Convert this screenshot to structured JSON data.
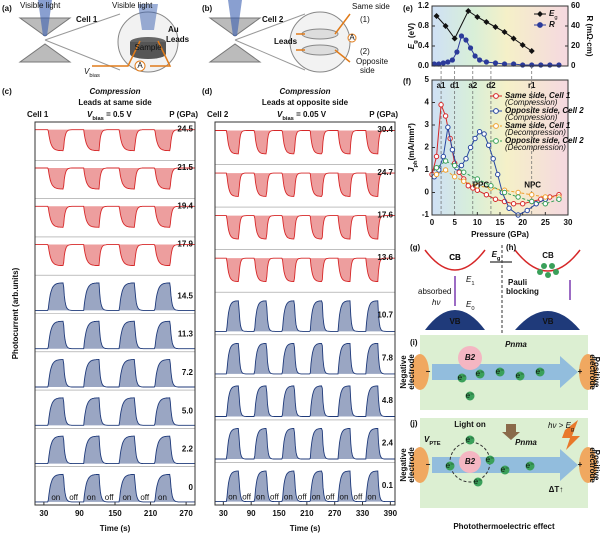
{
  "panel_labels": [
    "(a)",
    "(b)",
    "(c)",
    "(d)",
    "(e)",
    "(f)",
    "(g)",
    "(h)",
    "(i)",
    "(j)"
  ],
  "panel_a": {
    "light_left": "Visible light",
    "light_right": "Visible light",
    "cell": "Cell 1",
    "au": "Au",
    "leads": "Leads",
    "sample": "Sample",
    "bias": {
      "symbol": "V",
      "sub": "bias"
    },
    "ammeter": "A"
  },
  "panel_b": {
    "cell": "Cell 2",
    "leads": "Leads",
    "same": "Same side",
    "same_num": "(1)",
    "opposite_num": "(2)",
    "opposite": "Opposite",
    "opposite2": "side",
    "ammeter": "A"
  },
  "chart_data": [
    {
      "type": "traces",
      "title": "Compression",
      "subtitle": "Leads at same side",
      "cell": "Cell 1",
      "bias": {
        "symbol": "V",
        "sub": "bias",
        "rest": " = 0.5 V"
      },
      "unit_label": "P (GPa)",
      "x_label": "Time (s)",
      "y_label": "Photocurrent (arb.units)",
      "xlim": [
        15,
        285
      ],
      "xticks": [
        30,
        90,
        150,
        210,
        270
      ],
      "switch": [
        "on",
        "off"
      ],
      "traces": [
        {
          "label": "24.5",
          "color": "#d62728",
          "polarity": "negative"
        },
        {
          "label": "21.5",
          "color": "#d62728",
          "polarity": "negative"
        },
        {
          "label": "19.4",
          "color": "#d62728",
          "polarity": "negative"
        },
        {
          "label": "17.9",
          "color": "#d62728",
          "polarity": "negative"
        },
        {
          "label": "14.5",
          "color": "#1f3a7a",
          "polarity": "positive"
        },
        {
          "label": "11.3",
          "color": "#1f3a7a",
          "polarity": "positive"
        },
        {
          "label": "7.2",
          "color": "#1f3a7a",
          "polarity": "positive"
        },
        {
          "label": "5.0",
          "color": "#1f3a7a",
          "polarity": "positive"
        },
        {
          "label": "2.2",
          "color": "#1f3a7a",
          "polarity": "positive"
        },
        {
          "label": "0",
          "color": "#1f3a7a",
          "polarity": "positive"
        }
      ]
    },
    {
      "type": "traces",
      "title": "Compression",
      "subtitle": "Leads at opposite side",
      "cell": "Cell 2",
      "bias": {
        "symbol": "V",
        "sub": "bias",
        "rest": " = 0.05 V"
      },
      "unit_label": "P (GPa)",
      "x_label": "Time (s)",
      "xlim": [
        12,
        400
      ],
      "xticks": [
        30,
        90,
        150,
        210,
        270,
        330,
        390
      ],
      "switch": [
        "on",
        "off"
      ],
      "traces": [
        {
          "label": "30.4",
          "color": "#d62728",
          "polarity": "negative"
        },
        {
          "label": "24.7",
          "color": "#d62728",
          "polarity": "negative"
        },
        {
          "label": "17.6",
          "color": "#d62728",
          "polarity": "negative"
        },
        {
          "label": "13.6",
          "color": "#d62728",
          "polarity": "negative"
        },
        {
          "label": "10.7",
          "color": "#1f3a7a",
          "polarity": "positive"
        },
        {
          "label": "7.8",
          "color": "#1f3a7a",
          "polarity": "positive"
        },
        {
          "label": "4.8",
          "color": "#1f3a7a",
          "polarity": "positive"
        },
        {
          "label": "2.4",
          "color": "#1f3a7a",
          "polarity": "positive"
        },
        {
          "label": "0.1",
          "color": "#1f3a7a",
          "polarity": "positive"
        }
      ]
    },
    {
      "type": "dual-axis-scatter",
      "xlim": [
        0,
        30
      ],
      "ylim": [
        0,
        1.2
      ],
      "yticks": [
        {
          "value": 0,
          "label": "0.0"
        },
        0.4,
        0.8,
        1.2
      ],
      "y2lim": [
        0,
        60
      ],
      "y2ticks": [
        0,
        20,
        40,
        60
      ],
      "y_label": {
        "symbol": "E",
        "sub": "g",
        "rest": " (eV)"
      },
      "y2_label": "R (mΩ·cm)",
      "legend": "upper right",
      "series": [
        {
          "name": "E",
          "name_sub": "g",
          "color": "#111111",
          "marker": "diamond",
          "x": [
            1,
            3,
            5,
            8,
            10,
            12,
            14,
            16,
            18,
            20,
            22
          ],
          "values": [
            1.0,
            0.8,
            0.55,
            1.1,
            0.98,
            0.88,
            0.78,
            0.68,
            0.55,
            0.42,
            0.3
          ]
        },
        {
          "name": "R",
          "color": "#2b3a9a",
          "marker": "circle",
          "axis": "y2",
          "x": [
            0.5,
            1.5,
            2.5,
            3.5,
            4.5,
            5.5,
            6.5,
            7.5,
            8.5,
            9.5,
            10.5,
            12,
            14,
            16,
            18,
            20,
            22,
            24,
            26,
            28
          ],
          "values": [
            2,
            2,
            3,
            4,
            6,
            14,
            30,
            26,
            18,
            10,
            6,
            4,
            3,
            2,
            2,
            1,
            1,
            1,
            1,
            1
          ]
        }
      ]
    },
    {
      "type": "line",
      "xlim": [
        0,
        30
      ],
      "xticks": [
        0,
        5,
        10,
        15,
        20,
        25,
        30
      ],
      "ylim": [
        -1,
        5
      ],
      "yticks": [
        -1,
        0,
        1,
        2,
        3,
        4,
        5
      ],
      "x_label": "Pressure (GPa)",
      "y_label": {
        "symbol": "J",
        "sub": "ph",
        "rest": "(mA/mm²)"
      },
      "legend": "upper right",
      "annotations": [
        {
          "text": "a1",
          "x": 2
        },
        {
          "text": "d1",
          "x": 5
        },
        {
          "text": "a2",
          "x": 9
        },
        {
          "text": "d2",
          "x": 13
        },
        {
          "text": "r1",
          "x": 22
        }
      ],
      "region_labels": [
        "PPC",
        "NPC"
      ],
      "series": [
        {
          "name": "Same side, Cell 1",
          "condition": "(Compression)",
          "color": "#d62728",
          "dash": false,
          "x": [
            0,
            1,
            2,
            3,
            4,
            5,
            6,
            7,
            8,
            9,
            10,
            12,
            14,
            16,
            18,
            20,
            22,
            24,
            26,
            28
          ],
          "values": [
            0.8,
            1.6,
            3.9,
            3.4,
            2.4,
            1.3,
            0.9,
            0.6,
            0.3,
            0.2,
            0.1,
            -0.1,
            -0.3,
            -0.4,
            -0.5,
            -0.5,
            -0.4,
            -0.3,
            -0.2,
            -0.1
          ]
        },
        {
          "name": "Opposite side, Cell 2",
          "condition": "(Compression)",
          "color": "#2747a0",
          "dash": false,
          "x": [
            0.5,
            1.5,
            2.5,
            3.5,
            4.5,
            5.5,
            6.5,
            7.5,
            8.5,
            9.5,
            10.5,
            11.5,
            12.5,
            13.5,
            14.5,
            15.5,
            17,
            19,
            21,
            23,
            25
          ],
          "values": [
            0.7,
            1.0,
            1.6,
            2.9,
            1.9,
            1.1,
            1.2,
            1.5,
            2.0,
            2.4,
            2.7,
            2.6,
            2.1,
            1.5,
            0.8,
            0.0,
            -0.7,
            -1.0,
            -0.8,
            -0.5,
            -0.3
          ]
        },
        {
          "name": "Same side, Cell 1",
          "condition": "(Decompression)",
          "color": "#f0a030",
          "dash": true,
          "x": [
            28,
            25,
            22,
            19,
            16,
            13,
            10,
            7,
            5,
            3,
            1
          ],
          "values": [
            -0.2,
            -0.2,
            -0.1,
            0.0,
            0.1,
            0.2,
            0.3,
            0.5,
            0.7,
            1.0,
            0.8
          ]
        },
        {
          "name": "Opposite side, Cell 2",
          "condition": "(Decompression)",
          "color": "#3aa05a",
          "dash": true,
          "x": [
            28,
            25,
            22,
            19,
            16,
            13,
            10,
            7,
            5,
            3,
            1
          ],
          "values": [
            -0.3,
            -0.5,
            -0.4,
            -0.2,
            0.0,
            0.3,
            0.6,
            0.9,
            1.2,
            1.4,
            1.1
          ]
        }
      ]
    }
  ],
  "panel_gh": {
    "cb": "CB",
    "vb": "VB",
    "eg": {
      "symbol": "E",
      "sub": "g"
    },
    "absorbed": "absorbed",
    "hv": "hν",
    "e1": {
      "symbol": "E",
      "sub": "1"
    },
    "e0": {
      "symbol": "E",
      "sub": "0"
    },
    "pauli": "Pauli",
    "blocking": "blocking"
  },
  "panel_i": {
    "phase": "Pnma",
    "inclusion": "B2",
    "negative": "Negative",
    "positive": "Positive",
    "electrode": "electrode",
    "electron": "e⁻",
    "minus": "−",
    "plus": "+"
  },
  "panel_j": {
    "light_on": "Light on",
    "hv_gt": {
      "symbol": "hν > E",
      "sub": "g"
    },
    "vpte": {
      "symbol": "V",
      "sub": "PTE"
    },
    "phase": "Pnma",
    "inclusion": "B2",
    "delta_t": "ΔT↑"
  },
  "caption": "Photothermoelectric effect"
}
